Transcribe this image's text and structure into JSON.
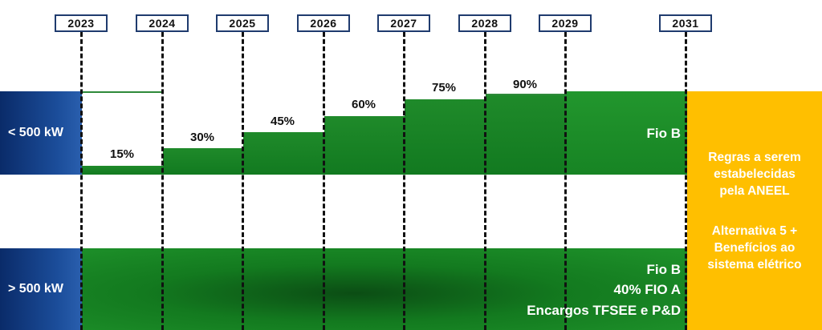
{
  "years": [
    "2023",
    "2024",
    "2025",
    "2026",
    "2027",
    "2028",
    "2029",
    "2031"
  ],
  "rows": {
    "small": {
      "label": "< 500 kW",
      "steps": [
        {
          "year": "2023",
          "percent_label": "15%",
          "value": 15
        },
        {
          "year": "2024",
          "percent_label": "30%",
          "value": 30
        },
        {
          "year": "2025",
          "percent_label": "45%",
          "value": 45
        },
        {
          "year": "2026",
          "percent_label": "60%",
          "value": 60
        },
        {
          "year": "2027",
          "percent_label": "75%",
          "value": 75
        },
        {
          "year": "2028",
          "percent_label": "90%",
          "value": 90
        }
      ],
      "component": "Fio B"
    },
    "large": {
      "label": "> 500 kW",
      "components": [
        "Fio B",
        "40% FIO A",
        "Encargos TFSEE e P&D"
      ]
    }
  },
  "right_panel": {
    "text1": [
      "Regras a serem",
      "estabelecidas",
      "pela ANEEL"
    ],
    "text2": [
      "Alternativa 5 +",
      "Benefícios ao",
      "sistema elétrico"
    ]
  },
  "colors": {
    "green": "#1f8a2a",
    "dark_green": "#0b4d14",
    "blue": "#0a2b69",
    "orange": "#ffbf00"
  }
}
